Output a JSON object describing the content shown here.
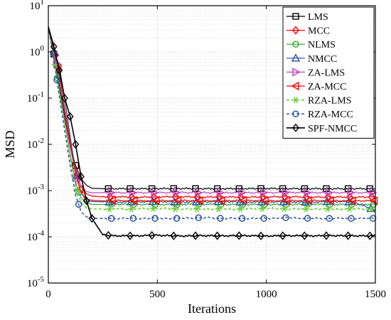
{
  "chart_data": {
    "type": "line",
    "xlabel": "Iterations",
    "ylabel": "MSD",
    "xlim": [
      0,
      1500
    ],
    "ylim": [
      1e-05,
      10
    ],
    "yscale": "log",
    "grid": true,
    "legend_position": "top-right",
    "x_ticks": [
      "0",
      "500",
      "1000",
      "1500"
    ],
    "y_ticks": [
      {
        "base": "10",
        "exp": "1",
        "value": 10
      },
      {
        "base": "10",
        "exp": "0",
        "value": 1
      },
      {
        "base": "10",
        "exp": "-1",
        "value": 0.1
      },
      {
        "base": "10",
        "exp": "-2",
        "value": 0.01
      },
      {
        "base": "10",
        "exp": "-3",
        "value": 0.001
      },
      {
        "base": "10",
        "exp": "-4",
        "value": 0.0001
      },
      {
        "base": "10",
        "exp": "-5",
        "value": 1e-05
      }
    ],
    "series": [
      {
        "name": "LMS",
        "color": "#000000",
        "marker": "square",
        "dash": "solid",
        "width": 1.2,
        "x": [
          0,
          25,
          50,
          75,
          100,
          125,
          150,
          175,
          200,
          250,
          300,
          400,
          500,
          600,
          700,
          800,
          900,
          1000,
          1100,
          1200,
          1300,
          1400,
          1500
        ],
        "y": [
          3.5,
          0.9,
          0.2,
          0.04,
          0.009,
          0.0035,
          0.0018,
          0.0013,
          0.00112,
          0.0011,
          0.0011,
          0.0011,
          0.0011,
          0.00111,
          0.0011,
          0.0011,
          0.0011,
          0.00111,
          0.0011,
          0.0011,
          0.0011,
          0.0011,
          0.0011
        ]
      },
      {
        "name": "MCC",
        "color": "#ff0000",
        "marker": "diamond",
        "dash": "solid",
        "width": 1.2,
        "x": [
          0,
          25,
          50,
          75,
          100,
          125,
          150,
          175,
          200,
          250,
          300,
          400,
          500,
          600,
          700,
          800,
          900,
          1000,
          1100,
          1200,
          1300,
          1400,
          1500
        ],
        "y": [
          3.5,
          1.4,
          0.3,
          0.06,
          0.012,
          0.003,
          0.0012,
          0.00085,
          0.00076,
          0.00073,
          0.00074,
          0.00072,
          0.00073,
          0.00074,
          0.00072,
          0.00073,
          0.00072,
          0.00073,
          0.00074,
          0.00072,
          0.00073,
          0.00072,
          0.00073
        ]
      },
      {
        "name": "NLMS",
        "color": "#2ca02c",
        "marker": "circle",
        "dash": "solid",
        "width": 1.2,
        "x": [
          0,
          25,
          50,
          75,
          100,
          125,
          150,
          175,
          200,
          250,
          300,
          400,
          500,
          600,
          700,
          800,
          900,
          1000,
          1100,
          1200,
          1300,
          1400,
          1500
        ],
        "y": [
          3.5,
          0.8,
          0.15,
          0.03,
          0.006,
          0.0015,
          0.0007,
          0.00055,
          0.0005,
          0.0005,
          0.00051,
          0.0005,
          0.0005,
          0.0005,
          0.00051,
          0.0005,
          0.0005,
          0.0005,
          0.0005,
          0.00051,
          0.0005,
          0.0005,
          0.0005
        ]
      },
      {
        "name": "NMCC",
        "color": "#1f4e9e",
        "marker": "triangle-up",
        "dash": "solid",
        "width": 1.2,
        "x": [
          0,
          25,
          50,
          75,
          100,
          125,
          150,
          175,
          200,
          250,
          300,
          400,
          500,
          600,
          700,
          800,
          900,
          1000,
          1100,
          1200,
          1300,
          1400,
          1500
        ],
        "y": [
          3.5,
          1.1,
          0.5,
          0.1,
          0.015,
          0.0025,
          0.0009,
          0.0006,
          0.00058,
          0.00057,
          0.00056,
          0.00057,
          0.00058,
          0.00056,
          0.00057,
          0.00058,
          0.00056,
          0.00057,
          0.00057,
          0.00056,
          0.00058,
          0.00057,
          0.00037
        ]
      },
      {
        "name": "ZA-LMS",
        "color": "#bf40bf",
        "marker": "triangle-right",
        "dash": "solid",
        "width": 1.2,
        "x": [
          0,
          25,
          50,
          75,
          100,
          125,
          150,
          175,
          200,
          250,
          300,
          400,
          500,
          600,
          700,
          800,
          900,
          1000,
          1100,
          1200,
          1300,
          1400,
          1500
        ],
        "y": [
          3.5,
          1.0,
          0.3,
          0.05,
          0.009,
          0.0025,
          0.0012,
          0.00095,
          0.0009,
          0.0009,
          0.0009,
          0.0009,
          0.0009,
          0.00091,
          0.0009,
          0.0009,
          0.0009,
          0.0009,
          0.00091,
          0.0009,
          0.0009,
          0.0009,
          0.0009
        ]
      },
      {
        "name": "ZA-MCC",
        "color": "#ff0000",
        "marker": "triangle-left",
        "dash": "solid",
        "width": 1.2,
        "x": [
          0,
          25,
          50,
          75,
          100,
          125,
          150,
          175,
          200,
          250,
          300,
          400,
          500,
          600,
          700,
          800,
          900,
          1000,
          1100,
          1200,
          1300,
          1400,
          1500
        ],
        "y": [
          3.5,
          1.2,
          0.35,
          0.06,
          0.01,
          0.0022,
          0.0009,
          0.00065,
          0.00062,
          0.0006,
          0.00061,
          0.0006,
          0.0006,
          0.00061,
          0.0006,
          0.0006,
          0.00061,
          0.0006,
          0.0006,
          0.00061,
          0.0006,
          0.0006,
          0.0006
        ]
      },
      {
        "name": "RZA-LMS",
        "color": "#66cc33",
        "marker": "asterisk",
        "dash": "4,3",
        "width": 1.6,
        "x": [
          0,
          25,
          50,
          75,
          100,
          125,
          150,
          175,
          200,
          250,
          300,
          400,
          500,
          600,
          700,
          800,
          900,
          1000,
          1100,
          1200,
          1300,
          1400,
          1500
        ],
        "y": [
          3.5,
          0.8,
          0.15,
          0.03,
          0.005,
          0.0012,
          0.00055,
          0.00042,
          0.0004,
          0.0004,
          0.0004,
          0.0004,
          0.00041,
          0.0004,
          0.0004,
          0.0004,
          0.0004,
          0.00041,
          0.0004,
          0.0004,
          0.0004,
          0.0004,
          0.0004
        ]
      },
      {
        "name": "RZA-MCC",
        "color": "#1f4e9e",
        "marker": "circle",
        "dash": "4,3",
        "width": 1.4,
        "x": [
          0,
          25,
          50,
          75,
          100,
          125,
          150,
          175,
          200,
          250,
          300,
          400,
          500,
          600,
          700,
          800,
          900,
          1000,
          1100,
          1200,
          1300,
          1400,
          1500
        ],
        "y": [
          3.5,
          0.7,
          0.11,
          0.02,
          0.0035,
          0.0008,
          0.00035,
          0.00027,
          0.00025,
          0.00025,
          0.00025,
          0.00025,
          0.00025,
          0.00025,
          0.00026,
          0.00025,
          0.00025,
          0.00025,
          0.00026,
          0.00025,
          0.00025,
          0.00025,
          0.00025
        ]
      },
      {
        "name": "SPF-NMCC",
        "color": "#000000",
        "marker": "diamond",
        "dash": "solid",
        "width": 1.6,
        "x": [
          0,
          25,
          50,
          75,
          100,
          125,
          150,
          175,
          200,
          250,
          300,
          400,
          500,
          600,
          700,
          800,
          900,
          1000,
          1100,
          1200,
          1300,
          1400,
          1500
        ],
        "y": [
          3.5,
          1.3,
          0.4,
          0.1,
          0.04,
          0.01,
          0.002,
          0.0006,
          0.00025,
          0.00011,
          0.000105,
          0.000105,
          0.000108,
          0.000104,
          0.000106,
          0.000105,
          0.000106,
          0.000104,
          0.000106,
          0.000105,
          0.000106,
          0.000105,
          0.000105
        ]
      }
    ],
    "marker_x": [
      25,
      125,
      275,
      375,
      475,
      575,
      675,
      775,
      875,
      975,
      1075,
      1175,
      1275,
      1375,
      1475
    ]
  }
}
